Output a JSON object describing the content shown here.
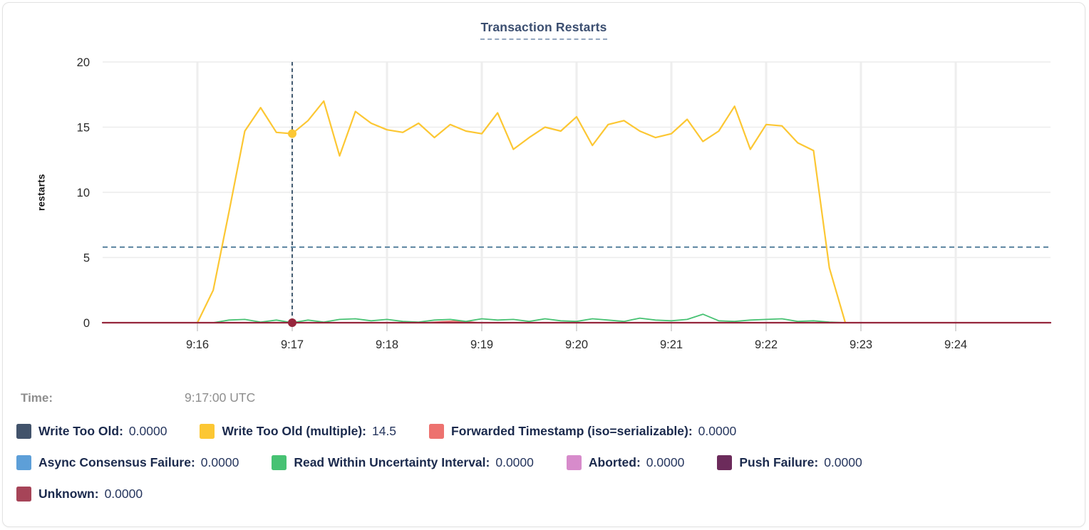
{
  "hover_readout": {
    "time_label": "Time:",
    "time_value": "9:17:00 UTC"
  },
  "legend_row_groups": [
    [
      0,
      1,
      2
    ],
    [
      3,
      4,
      5,
      6
    ],
    [
      7
    ]
  ],
  "colors": {
    "title": "#3b4e70",
    "axis_text": "#2b2b2b",
    "grid": "#ececec",
    "vertical_grid": "#eeeeee",
    "tick_stub": "#d9d9d9",
    "average_line": "#5b84a1",
    "crosshair": "#1c3a57",
    "legend_label": "#1b2a4d",
    "legend_value": "#26365e",
    "muted_text": "#8e8e8e"
  },
  "chart_data": {
    "type": "line",
    "title": "Transaction Restarts",
    "xlabel": "",
    "ylabel": "restarts",
    "ylim": [
      0,
      20
    ],
    "yticks": [
      0,
      5,
      10,
      15,
      20
    ],
    "grid": true,
    "legend_position": "bottom",
    "x_domain_seconds": [
      0,
      600
    ],
    "xticks": [
      {
        "label": "9:16",
        "seconds": 60
      },
      {
        "label": "9:17",
        "seconds": 120
      },
      {
        "label": "9:18",
        "seconds": 180
      },
      {
        "label": "9:19",
        "seconds": 240
      },
      {
        "label": "9:20",
        "seconds": 300
      },
      {
        "label": "9:21",
        "seconds": 360
      },
      {
        "label": "9:22",
        "seconds": 420
      },
      {
        "label": "9:23",
        "seconds": 480
      },
      {
        "label": "9:24",
        "seconds": 540
      }
    ],
    "average_line_value": 5.8,
    "crosshair": {
      "seconds": 120,
      "time_label": "9:17:00 UTC"
    },
    "hover_points": [
      {
        "series_index": 1,
        "seconds": 120,
        "value": 14.5
      },
      {
        "series_index": 7,
        "seconds": 120,
        "value": 0
      }
    ],
    "series": [
      {
        "name": "Write Too Old",
        "color": "#42536b",
        "value": "0.0000",
        "line_width": 2,
        "points": [
          [
            0,
            0
          ],
          [
            600,
            0
          ]
        ]
      },
      {
        "name": "Write Too Old (multiple)",
        "color": "#fcc733",
        "value": "14.5",
        "line_width": 2.2,
        "points": [
          [
            60,
            0
          ],
          [
            70,
            2.5
          ],
          [
            80,
            8.5
          ],
          [
            90,
            14.7
          ],
          [
            100,
            16.5
          ],
          [
            110,
            14.6
          ],
          [
            120,
            14.5
          ],
          [
            130,
            15.5
          ],
          [
            140,
            17.0
          ],
          [
            150,
            12.8
          ],
          [
            160,
            16.2
          ],
          [
            170,
            15.3
          ],
          [
            180,
            14.8
          ],
          [
            190,
            14.6
          ],
          [
            200,
            15.3
          ],
          [
            210,
            14.2
          ],
          [
            220,
            15.2
          ],
          [
            230,
            14.7
          ],
          [
            240,
            14.5
          ],
          [
            250,
            16.1
          ],
          [
            260,
            13.3
          ],
          [
            270,
            14.2
          ],
          [
            280,
            15.0
          ],
          [
            290,
            14.7
          ],
          [
            300,
            15.8
          ],
          [
            310,
            13.6
          ],
          [
            320,
            15.2
          ],
          [
            330,
            15.5
          ],
          [
            340,
            14.7
          ],
          [
            350,
            14.2
          ],
          [
            360,
            14.5
          ],
          [
            370,
            15.6
          ],
          [
            380,
            13.9
          ],
          [
            390,
            14.7
          ],
          [
            400,
            16.6
          ],
          [
            410,
            13.3
          ],
          [
            420,
            15.2
          ],
          [
            430,
            15.1
          ],
          [
            440,
            13.8
          ],
          [
            450,
            13.2
          ],
          [
            460,
            4.2
          ],
          [
            470,
            0.05
          ]
        ]
      },
      {
        "name": "Forwarded Timestamp (iso=serializable)",
        "color": "#ed726f",
        "value": "0.0000",
        "line_width": 1.8,
        "points": [
          [
            0,
            0
          ],
          [
            205,
            0
          ],
          [
            215,
            0.08
          ],
          [
            222,
            0.12
          ],
          [
            230,
            0.08
          ],
          [
            238,
            0
          ],
          [
            600,
            0
          ]
        ]
      },
      {
        "name": "Async Consensus Failure",
        "color": "#5d9fd8",
        "value": "0.0000",
        "line_width": 2,
        "points": [
          [
            0,
            0
          ],
          [
            600,
            0
          ]
        ]
      },
      {
        "name": "Read Within Uncertainty Interval",
        "color": "#47c273",
        "value": "0.0000",
        "line_width": 1.8,
        "points": [
          [
            70,
            0
          ],
          [
            80,
            0.2
          ],
          [
            90,
            0.25
          ],
          [
            100,
            0.05
          ],
          [
            110,
            0.2
          ],
          [
            120,
            0
          ],
          [
            130,
            0.2
          ],
          [
            140,
            0.05
          ],
          [
            150,
            0.25
          ],
          [
            160,
            0.3
          ],
          [
            170,
            0.15
          ],
          [
            180,
            0.25
          ],
          [
            190,
            0.1
          ],
          [
            200,
            0.05
          ],
          [
            210,
            0.2
          ],
          [
            220,
            0.25
          ],
          [
            230,
            0.1
          ],
          [
            240,
            0.3
          ],
          [
            250,
            0.2
          ],
          [
            260,
            0.25
          ],
          [
            270,
            0.1
          ],
          [
            280,
            0.3
          ],
          [
            290,
            0.15
          ],
          [
            300,
            0.1
          ],
          [
            310,
            0.3
          ],
          [
            320,
            0.2
          ],
          [
            330,
            0.1
          ],
          [
            340,
            0.35
          ],
          [
            350,
            0.2
          ],
          [
            360,
            0.15
          ],
          [
            370,
            0.25
          ],
          [
            380,
            0.65
          ],
          [
            390,
            0.15
          ],
          [
            400,
            0.1
          ],
          [
            410,
            0.2
          ],
          [
            420,
            0.25
          ],
          [
            430,
            0.3
          ],
          [
            440,
            0.1
          ],
          [
            450,
            0.15
          ],
          [
            460,
            0.05
          ],
          [
            470,
            0
          ]
        ]
      },
      {
        "name": "Aborted",
        "color": "#d78bcb",
        "value": "0.0000",
        "line_width": 2,
        "points": [
          [
            0,
            0
          ],
          [
            600,
            0
          ]
        ]
      },
      {
        "name": "Push Failure",
        "color": "#6c2b5b",
        "value": "0.0000",
        "line_width": 2,
        "points": [
          [
            0,
            0
          ],
          [
            600,
            0
          ]
        ]
      },
      {
        "name": "Unknown",
        "color": "#a64458",
        "line_color": "#96263c",
        "value": "0.0000",
        "line_width": 2.2,
        "points": [
          [
            0,
            0
          ],
          [
            600,
            0
          ]
        ]
      }
    ]
  }
}
